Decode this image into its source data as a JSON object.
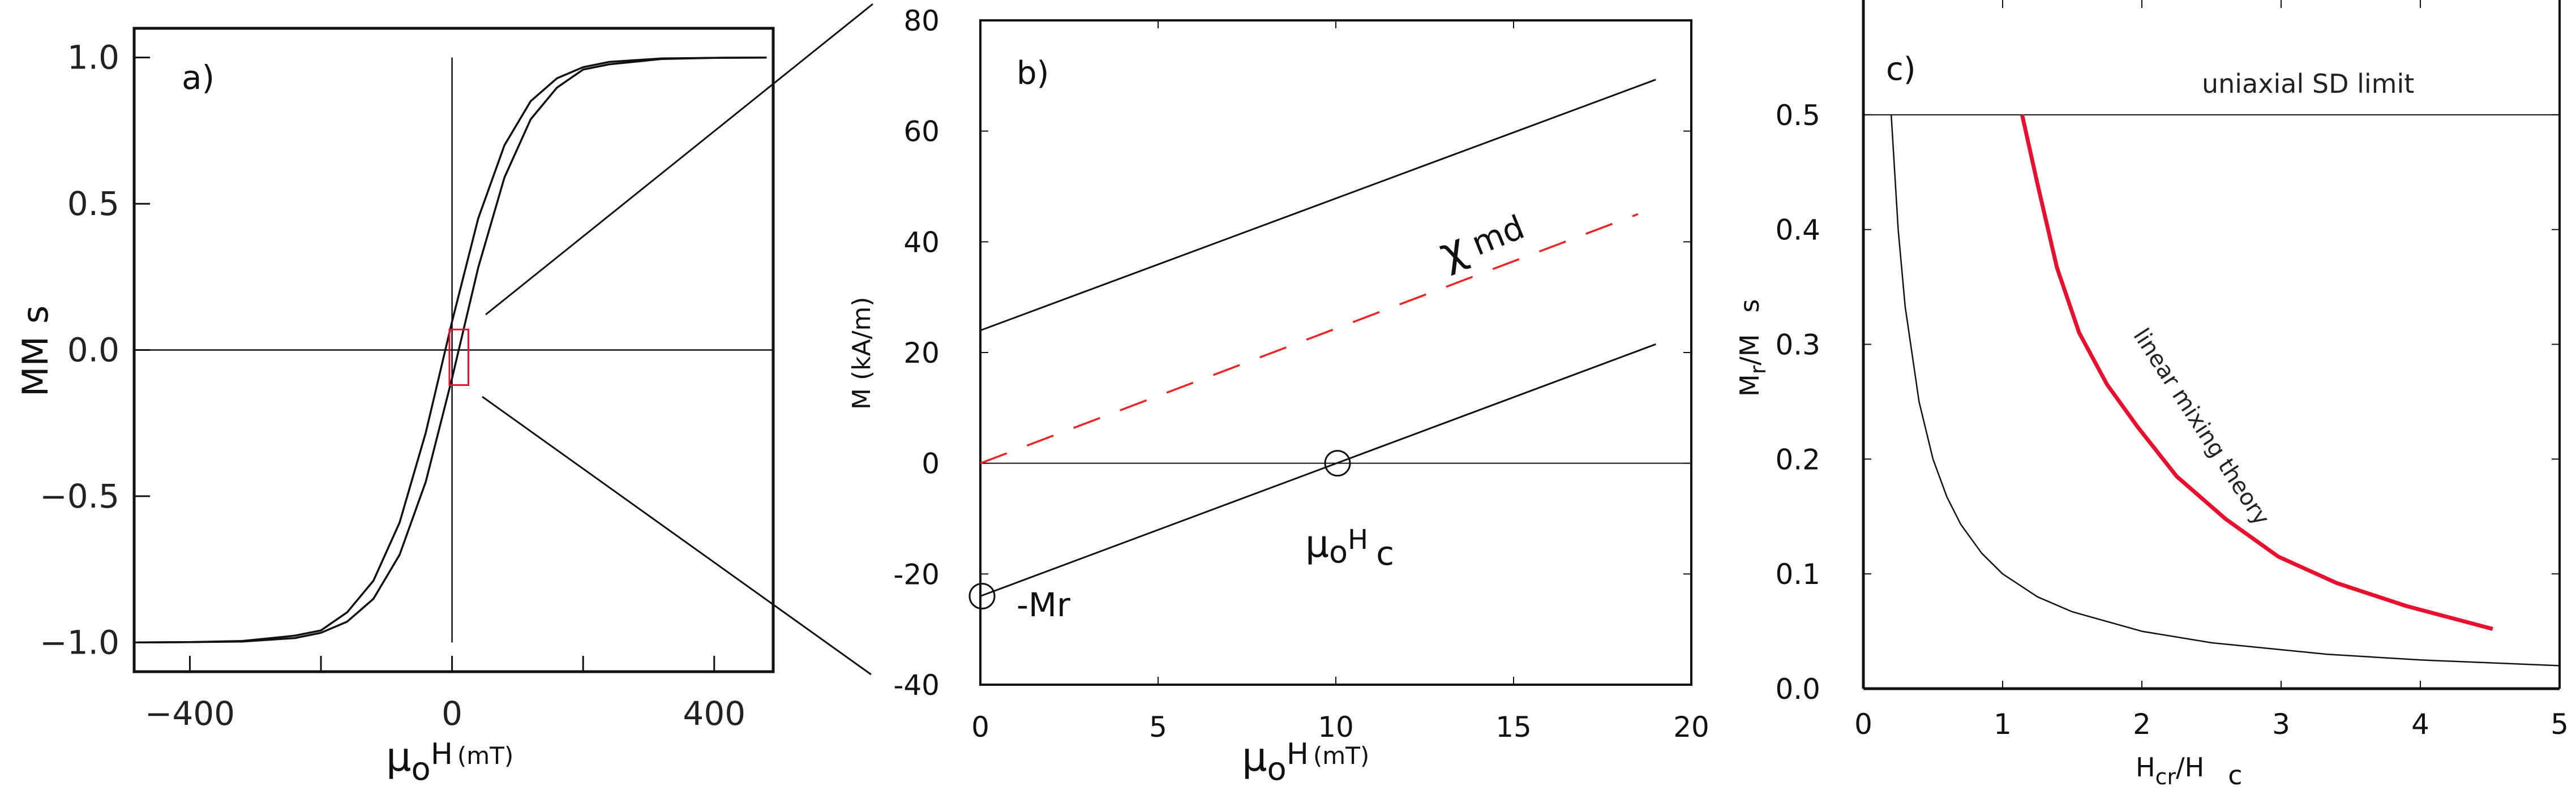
{
  "colors": {
    "axis": "#111111",
    "red": "#e8102e",
    "red_dashed": "#ee2222"
  },
  "chart_data": [
    {
      "type": "line",
      "panel_label": "a)",
      "xlabel": {
        "mu": "μ",
        "sub": "o",
        "h": "H",
        "unit": "(mT)"
      },
      "ylabel": {
        "main": "MM",
        "sub": "s"
      },
      "xlim": [
        -485,
        490
      ],
      "ylim": [
        -1.1,
        1.1
      ],
      "x_tick_values": [
        -400,
        -200,
        0,
        200,
        400
      ],
      "x_tick_labels": [
        {
          "v": -400,
          "t": "−400"
        },
        {
          "v": 0,
          "t": "0"
        },
        {
          "v": 400,
          "t": "400"
        }
      ],
      "y_tick_labels": [
        {
          "v": 1.0,
          "t": "1.0"
        },
        {
          "v": 0.5,
          "t": "0.5"
        },
        {
          "v": 0.0,
          "t": "0.0"
        },
        {
          "v": -0.5,
          "t": "−0.5"
        },
        {
          "v": -1.0,
          "t": "−1.0"
        }
      ],
      "grid": false,
      "series": [
        {
          "x": [
            -480,
            -400,
            -320,
            -240,
            -200,
            -160,
            -120,
            -80,
            -40,
            0,
            40,
            80,
            120,
            160,
            200,
            240,
            320,
            400,
            480
          ],
          "y": [
            -1.0,
            -0.999,
            -0.995,
            -0.977,
            -0.959,
            -0.897,
            -0.789,
            -0.59,
            -0.282,
            0.097,
            0.45,
            0.7,
            0.851,
            0.929,
            0.967,
            0.985,
            0.997,
            0.999,
            1.0
          ]
        },
        {
          "x": [
            -480,
            -400,
            -320,
            -240,
            -200,
            -160,
            -120,
            -80,
            -40,
            0,
            40,
            80,
            120,
            160,
            200,
            240,
            320,
            400,
            480
          ],
          "y": [
            -1.0,
            -0.999,
            -0.997,
            -0.985,
            -0.967,
            -0.929,
            -0.851,
            -0.7,
            -0.45,
            -0.097,
            0.282,
            0.59,
            0.789,
            0.897,
            0.959,
            0.977,
            0.995,
            0.999,
            1.0
          ]
        }
      ],
      "zoom_box": {
        "x": [
          -4,
          25
        ],
        "y": [
          -0.12,
          0.07
        ]
      }
    },
    {
      "type": "line",
      "panel_label": "b)",
      "xlabel": {
        "mu": "μ",
        "sub": "o",
        "h": "H",
        "unit": "(mT)"
      },
      "ylabel": "M (kA/m)",
      "xlim": [
        0,
        20
      ],
      "ylim": [
        -40,
        80
      ],
      "x_tick_labels": [
        {
          "v": 0,
          "t": "0"
        },
        {
          "v": 5,
          "t": "5"
        },
        {
          "v": 10,
          "t": "10"
        },
        {
          "v": 15,
          "t": "15"
        },
        {
          "v": 20,
          "t": "20"
        }
      ],
      "y_tick_labels": [
        {
          "v": 80,
          "t": "80"
        },
        {
          "v": 60,
          "t": "60"
        },
        {
          "v": 40,
          "t": "40"
        },
        {
          "v": 20,
          "t": "20"
        },
        {
          "v": 0,
          "t": "0"
        },
        {
          "v": -20,
          "t": "-20"
        },
        {
          "v": -40,
          "t": "-40"
        }
      ],
      "grid": false,
      "series": [
        {
          "style": "solid",
          "x": [
            0,
            19
          ],
          "y": [
            24,
            69.3
          ]
        },
        {
          "style": "solid",
          "x": [
            0,
            19
          ],
          "y": [
            -24,
            21.5
          ]
        },
        {
          "style": "dashed-red",
          "x": [
            0,
            18.5
          ],
          "y": [
            0,
            45
          ]
        }
      ],
      "markers": [
        {
          "x": 0,
          "y": -24
        },
        {
          "x": 10,
          "y": 0
        }
      ],
      "annotations": {
        "chi": "χ",
        "chi_sub": "md",
        "hc": {
          "mu": "μ",
          "sub": "o",
          "h": "H",
          "c": "c"
        },
        "mr": "-Mr"
      }
    },
    {
      "type": "line",
      "panel_label": "c)",
      "xlabel": {
        "h": "H",
        "sub1": "cr",
        "slash": "/H",
        "sub2": "c"
      },
      "ylabel": {
        "m": "M",
        "sub1": "r",
        "slash": "/M",
        "sub2": "s"
      },
      "xlim": [
        0,
        5
      ],
      "ylim": [
        0,
        0.6
      ],
      "x_tick_labels": [
        {
          "v": 0,
          "t": "0"
        },
        {
          "v": 1,
          "t": "1"
        },
        {
          "v": 2,
          "t": "2"
        },
        {
          "v": 3,
          "t": "3"
        },
        {
          "v": 4,
          "t": "4"
        },
        {
          "v": 5,
          "t": "5"
        }
      ],
      "y_tick_labels": [
        {
          "v": 0.0,
          "t": "0.0"
        },
        {
          "v": 0.1,
          "t": "0.1"
        },
        {
          "v": 0.2,
          "t": "0.2"
        },
        {
          "v": 0.3,
          "t": "0.3"
        },
        {
          "v": 0.4,
          "t": "0.4"
        },
        {
          "v": 0.5,
          "t": "0.5"
        }
      ],
      "grid": false,
      "limit_line": {
        "y": 0.5,
        "label": "uniaxial SD limit"
      },
      "series": [
        {
          "style": "thin-black",
          "x": [
            0.2,
            0.25,
            0.3,
            0.4,
            0.5,
            0.6,
            0.7,
            0.85,
            1.0,
            1.25,
            1.5,
            2.0,
            2.5,
            3.33,
            4.0,
            5.0
          ],
          "y": [
            0.5,
            0.4,
            0.333,
            0.25,
            0.2,
            0.167,
            0.143,
            0.118,
            0.1,
            0.08,
            0.067,
            0.05,
            0.04,
            0.03,
            0.025,
            0.02
          ]
        },
        {
          "style": "thick-red",
          "name": "linear mixing theory",
          "x": [
            1.14,
            1.25,
            1.39,
            1.55,
            1.75,
            1.97,
            2.25,
            2.6,
            2.98,
            3.4,
            3.9,
            4.52
          ],
          "y": [
            0.5,
            0.44,
            0.367,
            0.31,
            0.265,
            0.228,
            0.185,
            0.148,
            0.115,
            0.092,
            0.072,
            0.052
          ]
        }
      ]
    }
  ]
}
